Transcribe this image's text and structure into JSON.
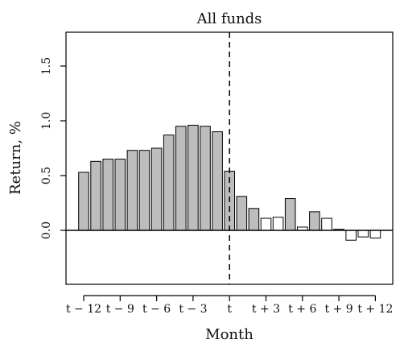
{
  "chart_data": {
    "type": "bar",
    "title": "All funds",
    "xlabel": "Month",
    "ylabel": "Return, %",
    "ylim": [
      -0.5,
      1.8
    ],
    "yticks": [
      "0.0",
      "0.5",
      "1.0",
      "1.5"
    ],
    "ytick_values": [
      0.0,
      0.5,
      1.0,
      1.5
    ],
    "xtick_labels": [
      "t − 12",
      "t − 9",
      "t − 6",
      "t − 3",
      "t",
      "t + 3",
      "t + 6",
      "t + 9",
      "t + 12"
    ],
    "xtick_months": [
      -12,
      -9,
      -6,
      -3,
      0,
      3,
      6,
      9,
      12
    ],
    "event_month": 0,
    "months": [
      -12,
      -11,
      -10,
      -9,
      -8,
      -7,
      -6,
      -5,
      -4,
      -3,
      -2,
      -1,
      0,
      1,
      2,
      3,
      4,
      5,
      6,
      7,
      8,
      9,
      10,
      11,
      12
    ],
    "values": [
      0.53,
      0.63,
      0.65,
      0.65,
      0.73,
      0.73,
      0.75,
      0.87,
      0.95,
      0.96,
      0.95,
      0.9,
      0.54,
      0.31,
      0.2,
      0.11,
      0.12,
      0.29,
      0.03,
      0.17,
      0.11,
      0.01,
      -0.09,
      -0.06,
      -0.07
    ],
    "filled": [
      true,
      true,
      true,
      true,
      true,
      true,
      true,
      true,
      true,
      true,
      true,
      true,
      true,
      true,
      true,
      false,
      false,
      true,
      false,
      true,
      false,
      false,
      false,
      false,
      false
    ],
    "colors": {
      "filled": "#bdbdbd",
      "open": "#ffffff",
      "stroke": "#000000"
    }
  }
}
